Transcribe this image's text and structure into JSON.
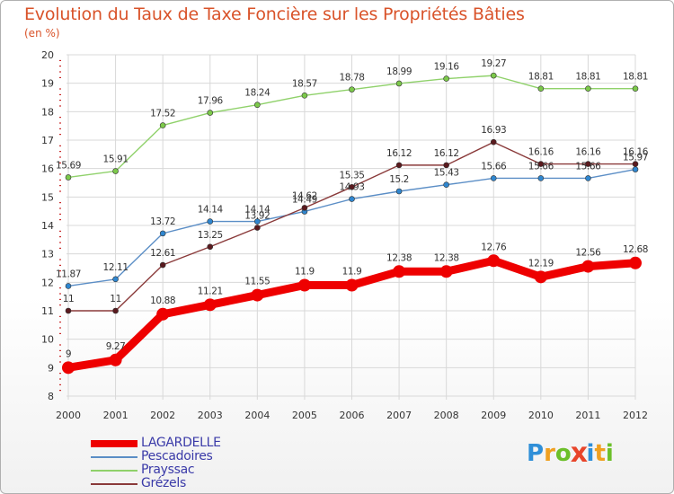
{
  "title": "Evolution du Taux de Taxe Foncière sur les Propriétés Bâties",
  "unit_label": "(en %)",
  "logo": {
    "letters": [
      {
        "ch": "P",
        "color": "#2f8fd8"
      },
      {
        "ch": "r",
        "color": "#f0a020"
      },
      {
        "ch": "o",
        "color": "#6cbf2a"
      },
      {
        "ch": "x",
        "color": "#e8452a"
      },
      {
        "ch": "i",
        "color": "#2f8fd8"
      },
      {
        "ch": "t",
        "color": "#f0a020"
      },
      {
        "ch": "i",
        "color": "#6cbf2a"
      }
    ]
  },
  "chart_data": {
    "type": "line",
    "title": "Evolution du Taux de Taxe Foncière sur les Propriétés Bâties",
    "ylabel": "(en %)",
    "xlabel": "",
    "x": [
      "2000",
      "2001",
      "2002",
      "2003",
      "2004",
      "2005",
      "2006",
      "2007",
      "2008",
      "2009",
      "2010",
      "2011",
      "2012"
    ],
    "ylim": [
      8,
      20
    ],
    "yticks": [
      8,
      9,
      10,
      11,
      12,
      13,
      14,
      15,
      16,
      17,
      18,
      19,
      20
    ],
    "grid": true,
    "legend_position": "bottom-left",
    "series": [
      {
        "name": "LAGARDELLE",
        "color": "#ee0000",
        "emphasis": true,
        "values": [
          9,
          9.27,
          10.88,
          11.21,
          11.55,
          11.9,
          11.9,
          12.38,
          12.38,
          12.76,
          12.19,
          12.56,
          12.68
        ],
        "labels": [
          "9",
          "9.27",
          "10.88",
          "11.21",
          "11.55",
          "11.9",
          "11.9",
          "12.38",
          "12.38",
          "12.76",
          "12.19",
          "12.56",
          "12.68"
        ]
      },
      {
        "name": "Pescadoires",
        "color": "#5b8ec6",
        "marker": "#2f86cf",
        "values": [
          11.87,
          12.11,
          13.72,
          14.14,
          14.14,
          14.49,
          14.93,
          15.2,
          15.43,
          15.66,
          15.66,
          15.66,
          15.97
        ],
        "labels": [
          "11.87",
          "12.11",
          "13.72",
          "14.14",
          "14.14",
          "14.49",
          "14.93",
          "15.2",
          "15.43",
          "15.66",
          "15.66",
          "15.66",
          "15.97"
        ]
      },
      {
        "name": "Prayssac",
        "color": "#8fd16a",
        "marker": "#7cc94a",
        "values": [
          15.69,
          15.91,
          17.52,
          17.96,
          18.24,
          18.57,
          18.78,
          18.99,
          19.16,
          19.27,
          18.81,
          18.81,
          18.81
        ],
        "labels": [
          "15.69",
          "15.91",
          "17.52",
          "17.96",
          "18.24",
          "18.57",
          "18.78",
          "18.99",
          "19.16",
          "19.27",
          "18.81",
          "18.81",
          "18.81"
        ]
      },
      {
        "name": "Grézels",
        "color": "#8a3a3a",
        "marker": "#5a1a1e",
        "values": [
          11,
          11,
          12.61,
          13.25,
          13.92,
          14.62,
          15.35,
          16.12,
          16.12,
          16.93,
          16.16,
          16.16,
          16.16
        ],
        "labels": [
          "11",
          "11",
          "12.61",
          "13.25",
          "13.92",
          "14.62",
          "15.35",
          "16.12",
          "16.12",
          "16.93",
          "16.16",
          "16.16",
          "16.16"
        ]
      }
    ]
  }
}
